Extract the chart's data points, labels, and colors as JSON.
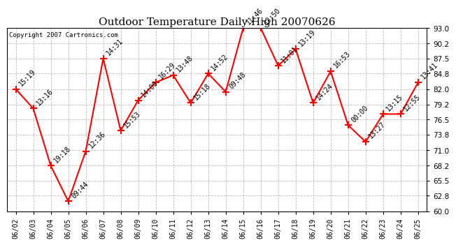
{
  "title": "Outdoor Temperature Daily High 20070626",
  "copyright": "Copyright 2007 Cartronics.com",
  "dates": [
    "06/02",
    "06/03",
    "06/04",
    "06/05",
    "06/06",
    "06/07",
    "06/08",
    "06/09",
    "06/10",
    "06/11",
    "06/12",
    "06/13",
    "06/14",
    "06/15",
    "06/16",
    "06/17",
    "06/18",
    "06/19",
    "06/20",
    "06/21",
    "06/22",
    "06/23",
    "06/24",
    "06/25"
  ],
  "values": [
    82.0,
    78.5,
    68.2,
    61.8,
    70.8,
    87.5,
    74.5,
    80.0,
    83.2,
    84.5,
    79.5,
    84.8,
    81.5,
    93.0,
    93.0,
    86.2,
    89.2,
    79.5,
    85.2,
    75.5,
    72.5,
    77.5,
    77.5,
    83.2
  ],
  "times": [
    "15:19",
    "13:16",
    "19:18",
    "09:44",
    "12:36",
    "14:31",
    "15:53",
    "14:00",
    "16:29",
    "13:48",
    "15:18",
    "14:52",
    "09:48",
    "11:46",
    "12:50",
    "11:01",
    "13:19",
    "14:24",
    "16:53",
    "00:00",
    "13:27",
    "13:15",
    "12:55",
    "13:41"
  ],
  "ylim": [
    60.0,
    93.0
  ],
  "yticks": [
    60.0,
    62.8,
    65.5,
    68.2,
    71.0,
    73.8,
    76.5,
    79.2,
    82.0,
    84.8,
    87.5,
    90.2,
    93.0
  ],
  "line_color": "red",
  "marker": "+",
  "marker_color": "red",
  "bg_color": "white",
  "grid_color": "#bbbbbb",
  "annotation_color": "black",
  "annotation_fontsize": 7,
  "title_fontsize": 11,
  "copyright_fontsize": 6.5,
  "xtick_fontsize": 7,
  "ytick_fontsize": 7.5
}
